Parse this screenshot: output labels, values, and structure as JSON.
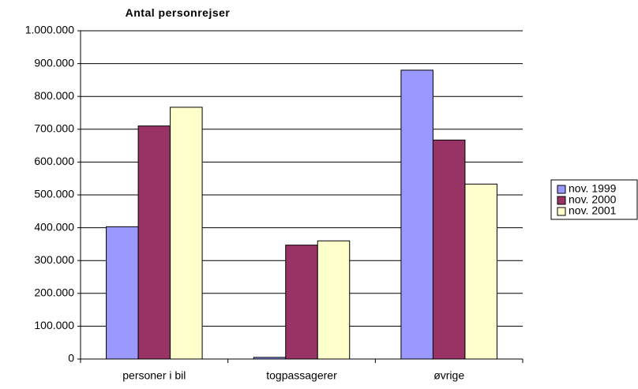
{
  "chart_data": {
    "type": "bar",
    "title": "Antal personrejser",
    "categories": [
      "personer i bil",
      "togpassagerer",
      "øvrige"
    ],
    "series": [
      {
        "name": "nov. 1999",
        "color": "#9999ff",
        "values": [
          403000,
          5000,
          880000
        ]
      },
      {
        "name": "nov. 2000",
        "color": "#993366",
        "values": [
          710000,
          347000,
          667000
        ]
      },
      {
        "name": "nov. 2001",
        "color": "#ffffcc",
        "values": [
          767000,
          360000,
          533000
        ]
      }
    ],
    "ylim": [
      0,
      1000000
    ],
    "yticks": [
      0,
      {
        "value": 100000,
        "label": "100.000"
      },
      {
        "value": 200000,
        "label": "200.000"
      },
      {
        "value": 300000,
        "label": "300.000"
      },
      {
        "value": 400000,
        "label": "400.000"
      },
      {
        "value": 500000,
        "label": "500.000"
      },
      {
        "value": 600000,
        "label": "600.000"
      },
      {
        "value": 700000,
        "label": "700.000"
      },
      {
        "value": 800000,
        "label": "800.000"
      },
      {
        "value": 900000,
        "label": "900.000"
      },
      {
        "value": 1000000,
        "label": "1.000.000"
      }
    ],
    "grid": true,
    "legend": "right"
  }
}
